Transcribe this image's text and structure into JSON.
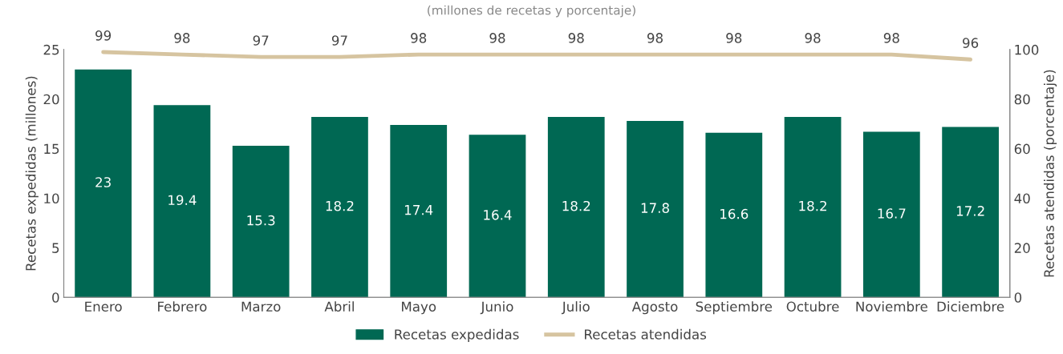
{
  "chart_data": {
    "type": "bar",
    "subtitle": "(millones de recetas y porcentaje)",
    "categories": [
      "Enero",
      "Febrero",
      "Marzo",
      "Abril",
      "Mayo",
      "Junio",
      "Julio",
      "Agosto",
      "Septiembre",
      "Octubre",
      "Noviembre",
      "Diciembre"
    ],
    "series": [
      {
        "name": "Recetas expedidas",
        "color": "#006853",
        "values": [
          23,
          19.4,
          15.3,
          18.2,
          17.4,
          16.4,
          18.2,
          17.8,
          16.6,
          18.2,
          16.7,
          17.2
        ]
      },
      {
        "name": "Recetas atendidas",
        "type": "line",
        "axis": "y2",
        "color": "#d6c4a0",
        "values": [
          99,
          98,
          97,
          97,
          98,
          98,
          98,
          98,
          98,
          98,
          98,
          96
        ]
      }
    ],
    "ylabel": "Recetas expedidas (millones)",
    "y2label": "Recetas atendidas (porcentaje)",
    "ylim": [
      0,
      25
    ],
    "yticks": [
      0,
      5,
      10,
      15,
      20,
      25
    ],
    "y2lim": [
      0,
      100
    ],
    "y2ticks": [
      0,
      20,
      40,
      60,
      80,
      100
    ],
    "data_labels": true,
    "legend": "bottom",
    "grid": false,
    "marker": "none"
  }
}
